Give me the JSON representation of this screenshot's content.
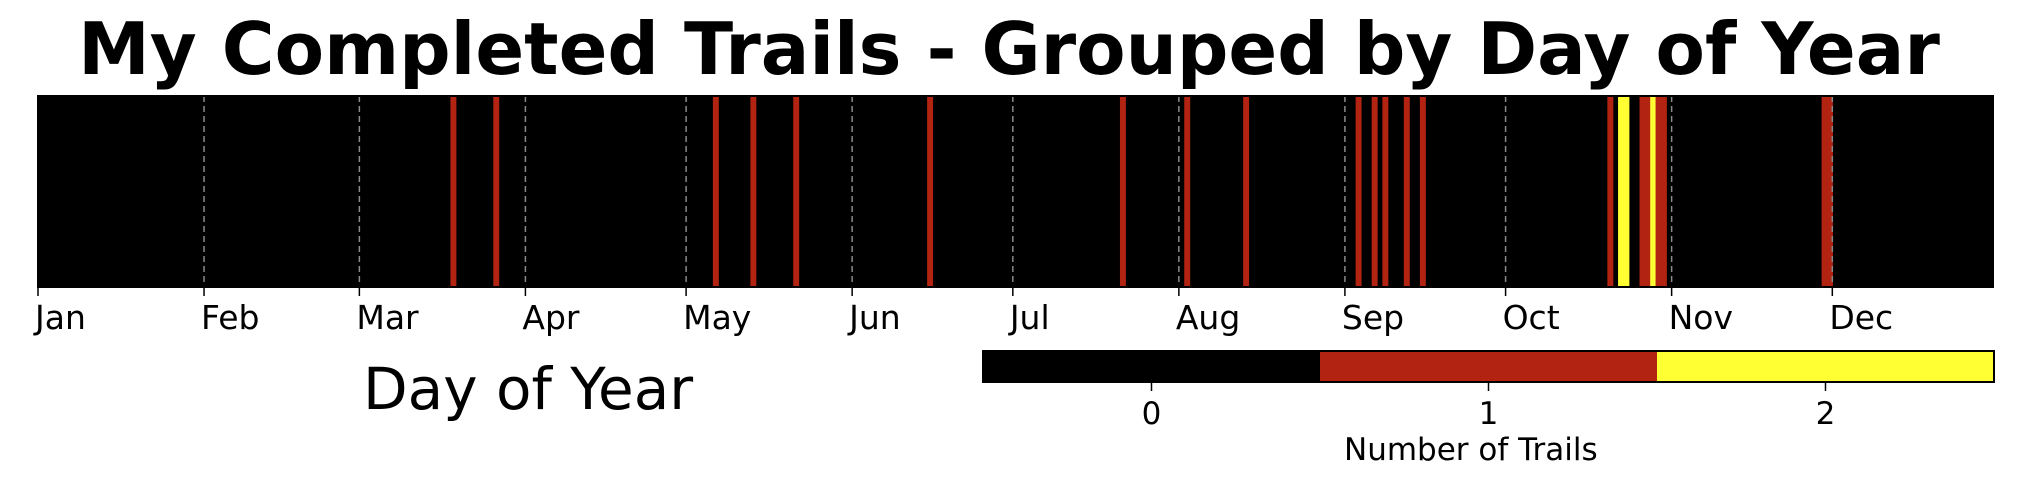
{
  "chart_data": {
    "type": "heatmap",
    "title": "My Completed Trails - Grouped by Day of Year",
    "xlabel": "Day of Year",
    "xlim": [
      1,
      366
    ],
    "month_ticks": [
      {
        "label": "Jan",
        "day": 1
      },
      {
        "label": "Feb",
        "day": 32
      },
      {
        "label": "Mar",
        "day": 61
      },
      {
        "label": "Apr",
        "day": 92
      },
      {
        "label": "May",
        "day": 122
      },
      {
        "label": "Jun",
        "day": 153
      },
      {
        "label": "Jul",
        "day": 183
      },
      {
        "label": "Aug",
        "day": 214
      },
      {
        "label": "Sep",
        "day": 245
      },
      {
        "label": "Oct",
        "day": 275
      },
      {
        "label": "Nov",
        "day": 306
      },
      {
        "label": "Dec",
        "day": 336
      }
    ],
    "grid": "dashed vertical at month starts",
    "cells": [
      {
        "day": 78,
        "value": 1
      },
      {
        "day": 86,
        "value": 1
      },
      {
        "day": 127,
        "value": 1
      },
      {
        "day": 134,
        "value": 1
      },
      {
        "day": 142,
        "value": 1
      },
      {
        "day": 167,
        "value": 1
      },
      {
        "day": 203,
        "value": 1
      },
      {
        "day": 215,
        "value": 1
      },
      {
        "day": 226,
        "value": 1
      },
      {
        "day": 247,
        "value": 1
      },
      {
        "day": 250,
        "value": 1
      },
      {
        "day": 252,
        "value": 1
      },
      {
        "day": 256,
        "value": 1
      },
      {
        "day": 259,
        "value": 1
      },
      {
        "day": 294,
        "value": 1
      },
      {
        "day": 296,
        "value": 2
      },
      {
        "day": 297,
        "value": 2
      },
      {
        "day": 300,
        "value": 1
      },
      {
        "day": 301,
        "value": 1
      },
      {
        "day": 302,
        "value": 2
      },
      {
        "day": 303,
        "value": 1
      },
      {
        "day": 304,
        "value": 1
      },
      {
        "day": 334,
        "value": 1
      },
      {
        "day": 335,
        "value": 1
      }
    ],
    "colorbar": {
      "label": "Number of Trails",
      "ticks": [
        0,
        1,
        2
      ],
      "colors": [
        "#000000",
        "#b22411",
        "#ffff33"
      ]
    }
  }
}
